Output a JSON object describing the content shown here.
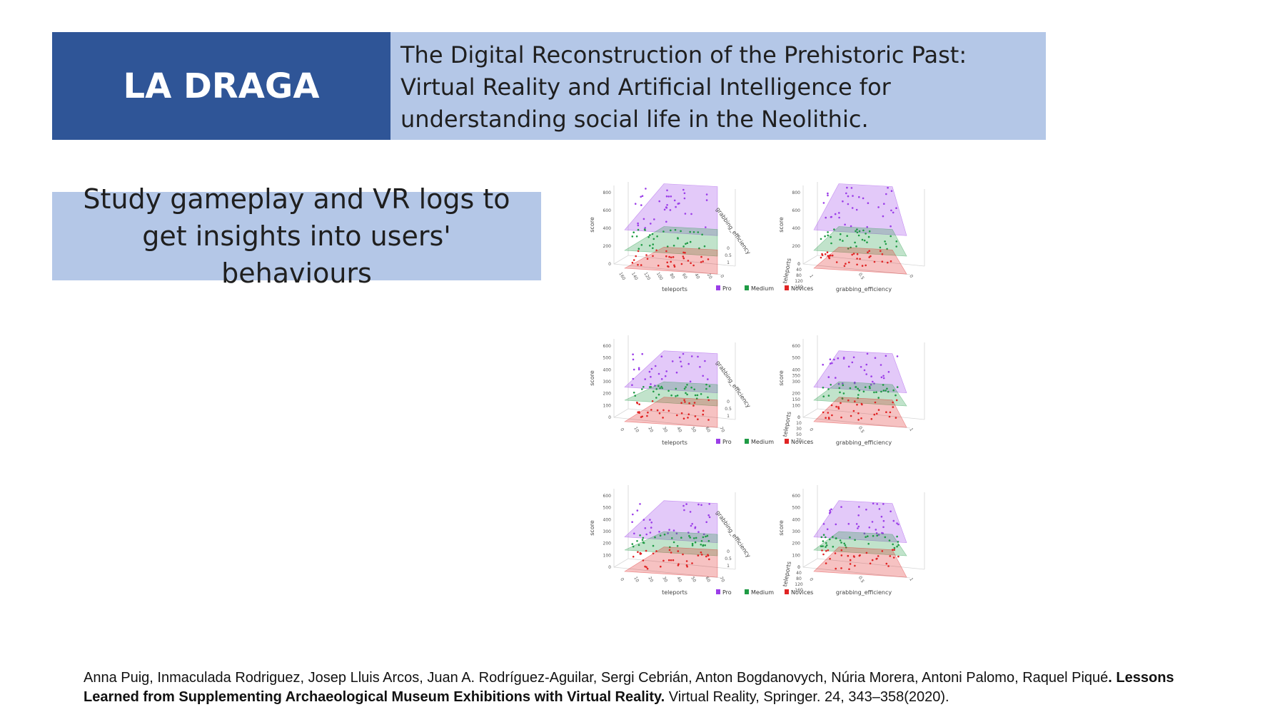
{
  "header": {
    "title": "LA DRAGA",
    "subtitle": "The Digital Reconstruction of the Prehistoric Past: Virtual Reality and Artificial Intelligence for understanding social life in the Neolithic."
  },
  "callout": {
    "text": "Study gameplay and VR logs to get insights into users' behaviours"
  },
  "colors": {
    "title_bg": "#2f5597",
    "light_bg": "#b4c7e7",
    "pro": "#9b3ee8",
    "medium": "#1f9b45",
    "novices": "#e02424"
  },
  "legend": {
    "pro": "Pro",
    "medium": "Medium",
    "novices": "Novices"
  },
  "chart_data": [
    {
      "type": "scatter",
      "view": "3d",
      "xlabel": "teleports",
      "ylabel": "score",
      "zlabel": "grabbing_efficiency",
      "x_ticks": [
        "160",
        "140",
        "120",
        "100",
        "80",
        "60",
        "40",
        "20",
        "0"
      ],
      "y_ticks": [
        "0",
        "200",
        "400",
        "600",
        "800"
      ],
      "z_ticks": [
        "0",
        "0.5",
        "1"
      ],
      "series": [
        {
          "name": "Pro",
          "score_range": [
            430,
            900
          ]
        },
        {
          "name": "Medium",
          "score_range": [
            200,
            420
          ]
        },
        {
          "name": "Novices",
          "score_range": [
            0,
            190
          ]
        }
      ]
    },
    {
      "type": "scatter",
      "view": "3d",
      "xlabel": "grabbing_efficiency",
      "ylabel": "score",
      "zlabel": "teleports",
      "x_ticks": [
        "1",
        "0.5",
        "0"
      ],
      "y_ticks": [
        "0",
        "200",
        "400",
        "600",
        "800"
      ],
      "z_ticks": [
        "0",
        "40",
        "80",
        "120",
        "160"
      ],
      "series": [
        {
          "name": "Pro",
          "score_range": [
            430,
            900
          ]
        },
        {
          "name": "Medium",
          "score_range": [
            200,
            420
          ]
        },
        {
          "name": "Novices",
          "score_range": [
            0,
            190
          ]
        }
      ]
    },
    {
      "type": "scatter",
      "view": "3d",
      "xlabel": "teleports",
      "ylabel": "score",
      "zlabel": "grabbing_efficiency",
      "x_ticks": [
        "0",
        "10",
        "20",
        "30",
        "40",
        "50",
        "60",
        "70"
      ],
      "y_ticks": [
        "0",
        "100",
        "200",
        "300",
        "400",
        "500",
        "600"
      ],
      "z_ticks": [
        "0",
        "0.5",
        "1"
      ],
      "series": [
        {
          "name": "Pro",
          "score_range": [
            290,
            560
          ]
        },
        {
          "name": "Medium",
          "score_range": [
            180,
            300
          ]
        },
        {
          "name": "Novices",
          "score_range": [
            0,
            170
          ]
        }
      ]
    },
    {
      "type": "scatter",
      "view": "3d",
      "xlabel": "grabbing_efficiency",
      "ylabel": "score",
      "zlabel": "teleports",
      "x_ticks": [
        "0",
        "0.5",
        "1"
      ],
      "y_ticks": [
        "0",
        "100",
        "150",
        "200",
        "300",
        "350",
        "400",
        "500",
        "600"
      ],
      "z_ticks": [
        "0",
        "10",
        "30",
        "50",
        "70"
      ],
      "series": [
        {
          "name": "Pro",
          "score_range": [
            290,
            560
          ]
        },
        {
          "name": "Medium",
          "score_range": [
            180,
            300
          ]
        },
        {
          "name": "Novices",
          "score_range": [
            0,
            170
          ]
        }
      ]
    },
    {
      "type": "scatter",
      "view": "3d",
      "xlabel": "teleports",
      "ylabel": "score",
      "zlabel": "grabbing_efficiency",
      "x_ticks": [
        "0",
        "10",
        "20",
        "30",
        "40",
        "50",
        "60",
        "70"
      ],
      "y_ticks": [
        "0",
        "100",
        "200",
        "300",
        "400",
        "500",
        "600"
      ],
      "z_ticks": [
        "0",
        "0.5",
        "1"
      ],
      "series": [
        {
          "name": "Pro",
          "score_range": [
            290,
            560
          ]
        },
        {
          "name": "Medium",
          "score_range": [
            180,
            300
          ]
        },
        {
          "name": "Novices",
          "score_range": [
            0,
            170
          ]
        }
      ]
    },
    {
      "type": "scatter",
      "view": "3d",
      "xlabel": "grabbing_efficiency",
      "ylabel": "score",
      "zlabel": "teleports",
      "x_ticks": [
        "0",
        "0.5",
        "1"
      ],
      "y_ticks": [
        "0",
        "100",
        "200",
        "300",
        "400",
        "500",
        "600"
      ],
      "z_ticks": [
        "0",
        "40",
        "80",
        "120",
        "160"
      ],
      "series": [
        {
          "name": "Pro",
          "score_range": [
            290,
            560
          ]
        },
        {
          "name": "Medium",
          "score_range": [
            180,
            300
          ]
        },
        {
          "name": "Novices",
          "score_range": [
            0,
            170
          ]
        }
      ]
    }
  ],
  "citation": {
    "authors": "Anna Puig, Inmaculada Rodriguez, Josep Lluis Arcos, Juan A. Rodríguez-Aguilar, Sergi Cebrián, Anton Bogdanovych, Núria Morera, Antoni Palomo, Raquel Piqué",
    "title": ". Lessons Learned from Supplementing Archaeological Museum Exhibitions with Virtual Reality.",
    "venue": " Virtual Reality, Springer. 24, 343–358(2020)."
  }
}
